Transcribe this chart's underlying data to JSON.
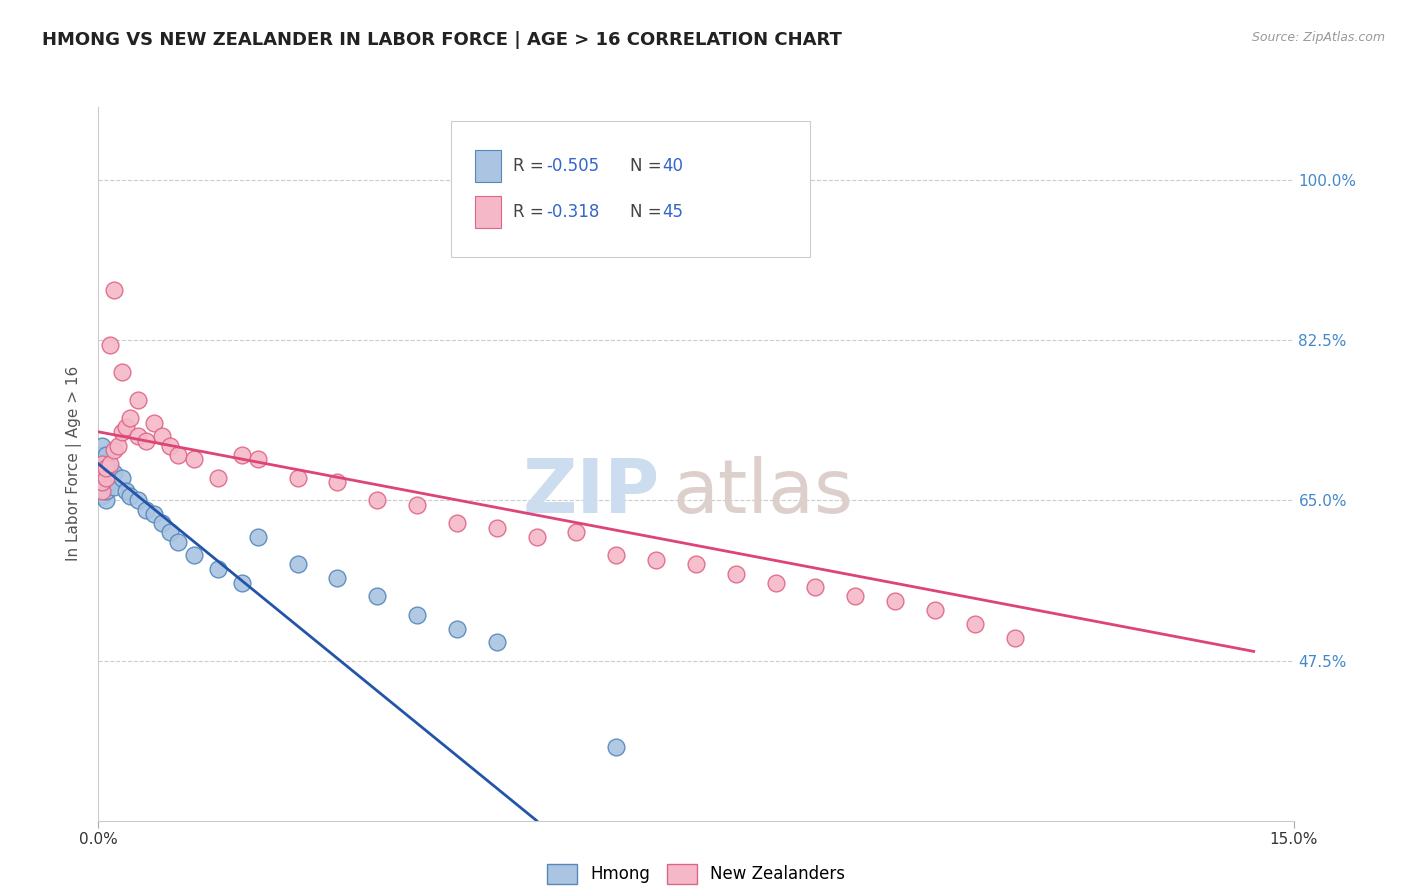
{
  "title": "HMONG VS NEW ZEALANDER IN LABOR FORCE | AGE > 16 CORRELATION CHART",
  "source_text": "Source: ZipAtlas.com",
  "ylabel": "In Labor Force | Age > 16",
  "xmin": 0.0,
  "xmax": 15.0,
  "ymin": 30.0,
  "ymax": 108.0,
  "right_yticks": [
    47.5,
    65.0,
    82.5,
    100.0
  ],
  "right_ytick_labels": [
    "47.5%",
    "65.0%",
    "82.5%",
    "100.0%"
  ],
  "hmong_color": "#aac4e2",
  "hmong_edge_color": "#5588bb",
  "nz_color": "#f5b8c8",
  "nz_edge_color": "#dd6688",
  "hmong_line_color": "#2255aa",
  "nz_line_color": "#dd4477",
  "legend_label_hmong": "Hmong",
  "legend_label_nz": "New Zealanders",
  "bg_color": "#ffffff",
  "grid_color": "#cccccc",
  "title_color": "#222222",
  "axis_label_color": "#555555",
  "right_tick_color": "#4488cc",
  "font_size_title": 13,
  "font_size_ticks": 11,
  "font_size_ylabel": 11,
  "marker_size": 9,
  "hmong_x": [
    0.05,
    0.05,
    0.05,
    0.05,
    0.05,
    0.05,
    0.05,
    0.05,
    0.05,
    0.05,
    0.1,
    0.1,
    0.1,
    0.1,
    0.1,
    0.1,
    0.15,
    0.15,
    0.2,
    0.2,
    0.3,
    0.35,
    0.4,
    0.5,
    0.6,
    0.7,
    0.8,
    0.9,
    1.0,
    1.2,
    1.5,
    1.8,
    2.0,
    2.5,
    3.0,
    3.5,
    4.0,
    4.5,
    5.0,
    6.5
  ],
  "hmong_y": [
    65.5,
    66.0,
    66.5,
    67.0,
    67.5,
    68.0,
    68.5,
    69.0,
    70.0,
    71.0,
    65.0,
    66.0,
    67.0,
    68.0,
    69.0,
    70.0,
    67.0,
    68.5,
    66.5,
    68.0,
    67.5,
    66.0,
    65.5,
    65.0,
    64.0,
    63.5,
    62.5,
    61.5,
    60.5,
    59.0,
    57.5,
    56.0,
    61.0,
    58.0,
    56.5,
    54.5,
    52.5,
    51.0,
    49.5,
    38.0
  ],
  "nz_x": [
    0.05,
    0.05,
    0.05,
    0.05,
    0.1,
    0.1,
    0.15,
    0.2,
    0.25,
    0.3,
    0.35,
    0.4,
    0.5,
    0.6,
    0.7,
    0.8,
    0.9,
    1.0,
    1.2,
    1.5,
    1.8,
    2.0,
    2.5,
    3.0,
    3.5,
    4.0,
    4.5,
    5.0,
    5.5,
    6.0,
    6.5,
    7.0,
    7.5,
    8.0,
    8.5,
    9.0,
    9.5,
    10.0,
    10.5,
    11.0,
    11.5,
    0.15,
    0.2,
    0.3,
    0.5
  ],
  "nz_y": [
    66.0,
    67.0,
    68.0,
    69.0,
    67.5,
    68.5,
    69.0,
    70.5,
    71.0,
    72.5,
    73.0,
    74.0,
    72.0,
    71.5,
    73.5,
    72.0,
    71.0,
    70.0,
    69.5,
    67.5,
    70.0,
    69.5,
    67.5,
    67.0,
    65.0,
    64.5,
    62.5,
    62.0,
    61.0,
    61.5,
    59.0,
    58.5,
    58.0,
    57.0,
    56.0,
    55.5,
    54.5,
    54.0,
    53.0,
    51.5,
    50.0,
    82.0,
    88.0,
    79.0,
    76.0
  ],
  "hmong_reg_x0": 0.0,
  "hmong_reg_x1": 5.5,
  "hmong_reg_y0": 69.0,
  "hmong_reg_y1": 30.0,
  "nz_reg_x0": 0.0,
  "nz_reg_x1": 14.5,
  "nz_reg_y0": 72.5,
  "nz_reg_y1": 48.5
}
